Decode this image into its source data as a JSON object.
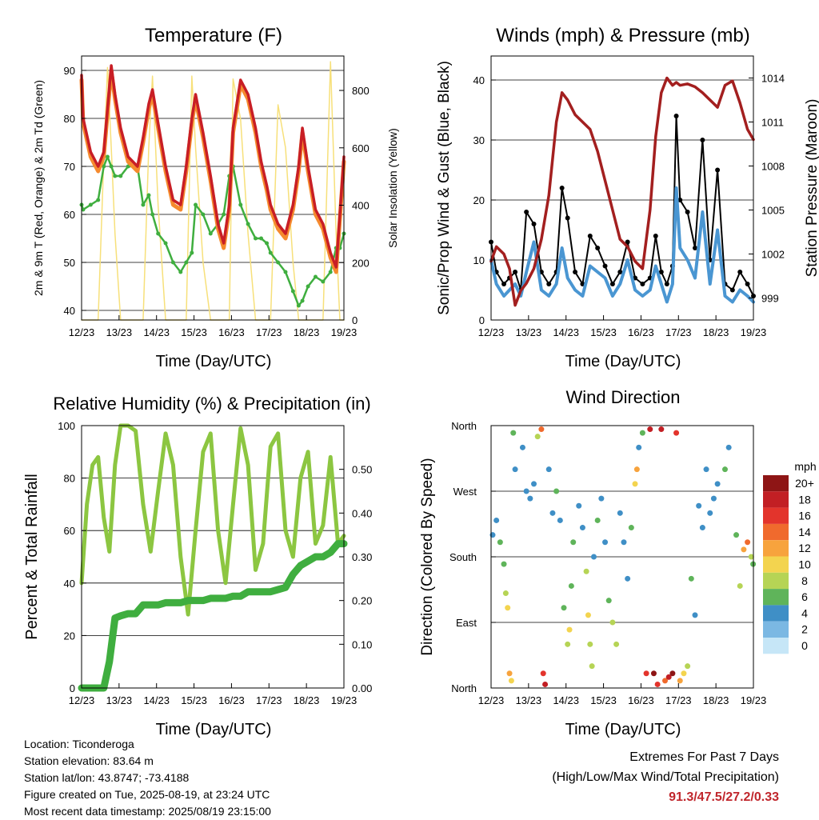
{
  "x_tick_labels": [
    "12/23",
    "13/23",
    "14/23",
    "15/23",
    "16/23",
    "17/23",
    "18/23",
    "19/23"
  ],
  "colors": {
    "temp_2m": "#c81e25",
    "temp_9m": "#f58a2e",
    "dewpoint": "#3fae3f",
    "solar": "#f7e07a",
    "wind": "#4a96d2",
    "gust": "#000000",
    "pressure": "#a31f1f",
    "rh": "#8cc641",
    "precip": "#3fae3f"
  },
  "panels": {
    "temperature": {
      "title": "Temperature (F)",
      "xlabel": "Time (Day/UTC)",
      "ylabel": "2m & 9m T (Red, Orange) & 2m Td (Green)",
      "y2label": "Solar Insolation (Yellow)",
      "ylim": [
        38,
        93
      ],
      "yticks": [
        40,
        50,
        60,
        70,
        80,
        90
      ],
      "y2lim": [
        0,
        920
      ],
      "y2ticks": [
        0,
        200,
        400,
        600,
        800
      ]
    },
    "winds": {
      "title": "Winds (mph) & Pressure (mb)",
      "xlabel": "Time (Day/UTC)",
      "ylabel": "Sonic/Prop Wind & Gust (Blue, Black)",
      "y2label": "Station Pressure (Maroon)",
      "ylim": [
        0,
        44
      ],
      "yticks": [
        0,
        10,
        20,
        30,
        40
      ],
      "y2lim": [
        997.5,
        1015.5
      ],
      "y2ticks": [
        999,
        1002,
        1005,
        1008,
        1011,
        1014
      ]
    },
    "humidity": {
      "title": "Relative Humidity (%) & Precipitation (in)",
      "xlabel": "Time (Day/UTC)",
      "ylabel": "Percent & Total Rainfall",
      "ylim": [
        0,
        100
      ],
      "yticks": [
        0,
        20,
        40,
        60,
        80,
        100
      ],
      "y2lim": [
        0,
        0.6
      ],
      "y2ticks": [
        "0.00",
        "0.10",
        "0.20",
        "0.30",
        "0.40",
        "0.50"
      ]
    },
    "direction": {
      "title": "Wind Direction",
      "xlabel": "Time (Day/UTC)",
      "ylabel": "Direction (Colored By Speed)",
      "yticks": [
        "North",
        "West",
        "South",
        "East",
        "North"
      ],
      "colorbar_title": "mph",
      "colorbar_labels": [
        "20+",
        "18",
        "16",
        "14",
        "12",
        "10",
        "8",
        "6",
        "4",
        "2",
        "0"
      ],
      "colorbar_colors": [
        "#8e1515",
        "#c21f24",
        "#e3342c",
        "#f06a2d",
        "#f7a33d",
        "#f3d44f",
        "#b6d455",
        "#5fb45a",
        "#3f8fc6",
        "#7bb8e3",
        "#c6e6f7"
      ]
    }
  },
  "chart_data": [
    {
      "type": "line",
      "panel": "temperature",
      "x": [
        12.958,
        13.0,
        13.2,
        13.4,
        13.55,
        13.65,
        13.75,
        13.85,
        14.0,
        14.2,
        14.45,
        14.6,
        14.75,
        14.85,
        15.0,
        15.2,
        15.4,
        15.6,
        15.75,
        15.9,
        16.0,
        16.2,
        16.4,
        16.6,
        16.75,
        16.9,
        17.0,
        17.2,
        17.4,
        17.6,
        17.75,
        17.9,
        18.0,
        18.2,
        18.4,
        18.6,
        18.75,
        18.85,
        19.0,
        19.2,
        19.4,
        19.6,
        19.75,
        19.85,
        19.958
      ],
      "series": [
        {
          "name": "2m T",
          "values": [
            89,
            80,
            73,
            70,
            73,
            82,
            91,
            85,
            78,
            72,
            70,
            76,
            83,
            86,
            79,
            70,
            63,
            62,
            70,
            80,
            85,
            77,
            68,
            58,
            54,
            62,
            78,
            88,
            85,
            78,
            71,
            66,
            62,
            58,
            56,
            62,
            70,
            78,
            70,
            61,
            58,
            52,
            49,
            60,
            72
          ]
        },
        {
          "name": "9m T",
          "values": [
            88,
            79,
            72,
            69,
            72,
            81,
            90,
            84,
            77,
            71,
            69,
            75,
            82,
            85,
            78,
            69,
            62,
            61,
            69,
            79,
            84,
            76,
            67,
            57,
            53,
            61,
            77,
            87,
            84,
            77,
            70,
            65,
            61,
            57,
            55,
            61,
            69,
            77,
            69,
            60,
            57,
            51,
            48,
            59,
            71
          ]
        },
        {
          "name": "2m Td",
          "values": [
            62,
            61,
            62,
            63,
            70,
            72,
            70,
            68,
            68,
            70,
            70,
            62,
            64,
            60,
            56,
            54,
            50,
            48,
            50,
            52,
            62,
            60,
            56,
            58,
            60,
            68,
            70,
            62,
            58,
            55,
            55,
            54,
            52,
            50,
            48,
            44,
            41,
            42,
            45,
            47,
            46,
            48,
            53,
            53,
            56
          ]
        },
        {
          "name": "Solar Insolation",
          "values": [
            0,
            0,
            0,
            0,
            560,
            880,
            600,
            300,
            0,
            0,
            0,
            0,
            600,
            850,
            400,
            0,
            0,
            0,
            0,
            850,
            600,
            200,
            0,
            0,
            0,
            0,
            840,
            700,
            300,
            0,
            0,
            0,
            0,
            750,
            600,
            200,
            0,
            0,
            0,
            0,
            0,
            900,
            300,
            0,
            0
          ]
        }
      ]
    },
    {
      "type": "line",
      "panel": "winds",
      "x": [
        12.958,
        13.1,
        13.3,
        13.45,
        13.6,
        13.75,
        13.9,
        14.1,
        14.3,
        14.5,
        14.7,
        14.85,
        15.0,
        15.2,
        15.4,
        15.6,
        15.8,
        16.0,
        16.2,
        16.4,
        16.6,
        16.8,
        17.0,
        17.2,
        17.35,
        17.5,
        17.65,
        17.8,
        17.9,
        18.0,
        18.2,
        18.4,
        18.6,
        18.8,
        19.0,
        19.2,
        19.4,
        19.6,
        19.8,
        19.958
      ],
      "series": [
        {
          "name": "Wind",
          "values": [
            10,
            6,
            4,
            5,
            6,
            4,
            8,
            13,
            5,
            4,
            6,
            12,
            7,
            5,
            4,
            9,
            8,
            7,
            4,
            6,
            10,
            5,
            4,
            5,
            9,
            6,
            3,
            6,
            22,
            12,
            10,
            7,
            18,
            6,
            15,
            4,
            3,
            5,
            4,
            3
          ]
        },
        {
          "name": "Gust",
          "values": [
            13,
            8,
            6,
            7,
            8,
            5,
            18,
            16,
            8,
            6,
            8,
            22,
            17,
            8,
            6,
            14,
            12,
            9,
            6,
            8,
            13,
            7,
            6,
            7,
            14,
            8,
            6,
            9,
            34,
            20,
            18,
            12,
            30,
            10,
            25,
            6,
            5,
            8,
            6,
            4
          ]
        },
        {
          "name": "Station Pressure",
          "values": [
            1001.5,
            1002.5,
            1002,
            1001,
            998.5,
            999.5,
            1000,
            1001,
            1003,
            1006,
            1011,
            1013,
            1012.5,
            1011.5,
            1011,
            1010.5,
            1009,
            1007,
            1005,
            1003,
            1002.5,
            1001.5,
            1001,
            1005,
            1010,
            1013,
            1014,
            1013.5,
            1013.7,
            1013.5,
            1013.6,
            1013.4,
            1013,
            1012.5,
            1012,
            1013.5,
            1013.8,
            1012.3,
            1010.5,
            1009.8
          ]
        }
      ]
    },
    {
      "type": "line",
      "panel": "humidity",
      "x": [
        12.958,
        13.1,
        13.25,
        13.4,
        13.55,
        13.7,
        13.85,
        14.0,
        14.2,
        14.4,
        14.6,
        14.8,
        15.0,
        15.2,
        15.4,
        15.6,
        15.8,
        16.0,
        16.2,
        16.4,
        16.6,
        16.8,
        17.0,
        17.2,
        17.4,
        17.6,
        17.8,
        18.0,
        18.2,
        18.4,
        18.6,
        18.8,
        19.0,
        19.2,
        19.4,
        19.6,
        19.8,
        19.958
      ],
      "series": [
        {
          "name": "Relative Humidity",
          "values": [
            40,
            70,
            85,
            88,
            65,
            52,
            85,
            100,
            100,
            98,
            70,
            52,
            75,
            97,
            85,
            50,
            28,
            60,
            90,
            97,
            60,
            40,
            70,
            99,
            85,
            45,
            55,
            92,
            97,
            60,
            50,
            80,
            90,
            55,
            62,
            88,
            55,
            58
          ]
        },
        {
          "name": "Total Precipitation",
          "values": [
            0,
            0,
            0,
            0,
            0,
            0.06,
            0.16,
            0.165,
            0.17,
            0.17,
            0.19,
            0.19,
            0.19,
            0.195,
            0.195,
            0.195,
            0.2,
            0.2,
            0.2,
            0.205,
            0.205,
            0.205,
            0.21,
            0.21,
            0.22,
            0.22,
            0.22,
            0.22,
            0.225,
            0.23,
            0.26,
            0.28,
            0.29,
            0.3,
            0.3,
            0.31,
            0.33,
            0.33
          ]
        }
      ]
    },
    {
      "type": "scatter",
      "panel": "direction",
      "x_range": [
        12.958,
        19.958
      ],
      "y_range": [
        0,
        360
      ],
      "series": [
        {
          "name": "Direction",
          "points": [
            [
              13.0,
              210,
              4
            ],
            [
              13.1,
              230,
              3
            ],
            [
              13.2,
              200,
              5
            ],
            [
              13.3,
              170,
              6
            ],
            [
              13.35,
              130,
              8
            ],
            [
              13.4,
              110,
              9
            ],
            [
              13.45,
              20,
              12
            ],
            [
              13.5,
              10,
              10
            ],
            [
              13.55,
              350,
              6
            ],
            [
              13.6,
              300,
              4
            ],
            [
              13.8,
              330,
              4
            ],
            [
              13.9,
              270,
              3
            ],
            [
              14.0,
              260,
              4
            ],
            [
              14.1,
              280,
              3
            ],
            [
              14.2,
              345,
              7
            ],
            [
              14.3,
              355,
              14
            ],
            [
              14.35,
              20,
              16
            ],
            [
              14.4,
              5,
              18
            ],
            [
              14.5,
              300,
              3
            ],
            [
              14.6,
              240,
              4
            ],
            [
              14.7,
              270,
              5
            ],
            [
              14.8,
              230,
              4
            ],
            [
              14.9,
              110,
              6
            ],
            [
              15.0,
              60,
              8
            ],
            [
              15.05,
              80,
              10
            ],
            [
              15.1,
              140,
              6
            ],
            [
              15.15,
              200,
              5
            ],
            [
              15.3,
              250,
              4
            ],
            [
              15.4,
              220,
              3
            ],
            [
              15.5,
              160,
              7
            ],
            [
              15.55,
              100,
              9
            ],
            [
              15.6,
              60,
              7
            ],
            [
              15.65,
              30,
              8
            ],
            [
              15.7,
              180,
              4
            ],
            [
              15.8,
              230,
              5
            ],
            [
              15.9,
              260,
              4
            ],
            [
              16.0,
              200,
              3
            ],
            [
              16.1,
              120,
              5
            ],
            [
              16.2,
              90,
              7
            ],
            [
              16.3,
              60,
              8
            ],
            [
              16.4,
              240,
              4
            ],
            [
              16.5,
              200,
              4
            ],
            [
              16.6,
              150,
              4
            ],
            [
              16.7,
              220,
              5
            ],
            [
              16.8,
              280,
              9
            ],
            [
              16.85,
              300,
              11
            ],
            [
              16.9,
              330,
              4
            ],
            [
              17.0,
              350,
              6
            ],
            [
              17.1,
              20,
              16
            ],
            [
              17.2,
              355,
              18
            ],
            [
              17.3,
              20,
              20
            ],
            [
              17.4,
              5,
              16
            ],
            [
              17.5,
              355,
              17
            ],
            [
              17.6,
              10,
              14
            ],
            [
              17.7,
              15,
              18
            ],
            [
              17.8,
              20,
              20
            ],
            [
              17.9,
              350,
              16
            ],
            [
              18.0,
              10,
              12
            ],
            [
              18.1,
              20,
              10
            ],
            [
              18.2,
              30,
              8
            ],
            [
              18.3,
              150,
              5
            ],
            [
              18.4,
              100,
              4
            ],
            [
              18.5,
              250,
              3
            ],
            [
              18.6,
              220,
              4
            ],
            [
              18.7,
              300,
              3
            ],
            [
              18.8,
              240,
              4
            ],
            [
              18.9,
              260,
              3
            ],
            [
              19.0,
              280,
              4
            ],
            [
              19.2,
              300,
              5
            ],
            [
              19.3,
              330,
              4
            ],
            [
              19.5,
              210,
              6
            ],
            [
              19.6,
              140,
              7
            ],
            [
              19.7,
              190,
              12
            ],
            [
              19.8,
              200,
              14
            ],
            [
              19.9,
              180,
              8
            ],
            [
              19.95,
              170,
              6
            ]
          ]
        }
      ]
    }
  ],
  "info": {
    "location": "Location: Ticonderoga",
    "elevation": "Station elevation: 83.64 m",
    "latlon": "Station lat/lon: 43.8747; -73.4188",
    "created": "Figure created on Tue, 2025-08-19, at 23:24 UTC",
    "latest": "Most recent data timestamp: 2025/08/19 23:15:00"
  },
  "extremes": {
    "heading": "Extremes For Past 7 Days",
    "subheading": "(High/Low/Max Wind/Total Precipitation)",
    "values": "91.3/47.5/27.2/0.33"
  }
}
